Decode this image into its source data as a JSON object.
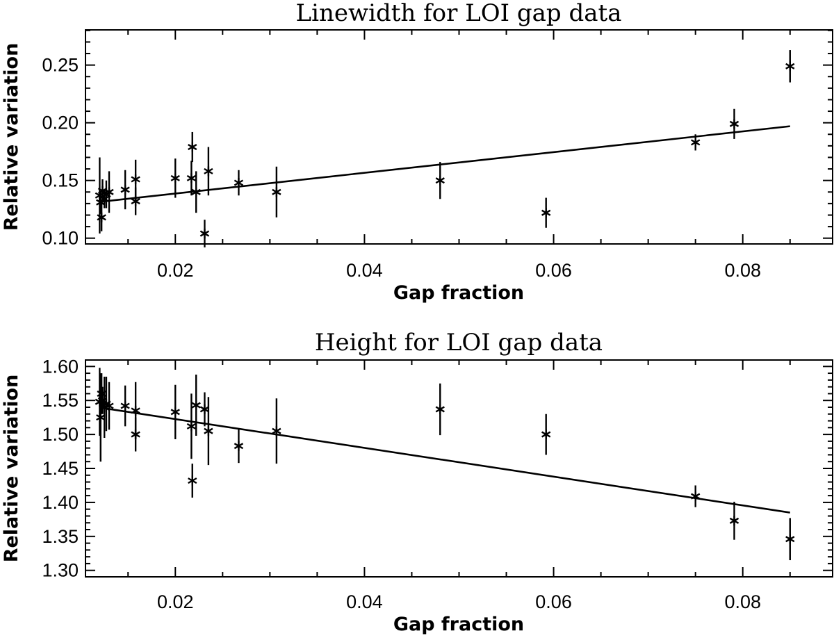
{
  "chart_data": [
    {
      "type": "scatter",
      "title": "Linewidth for LOI gap data",
      "xlabel": "Gap fraction",
      "ylabel": "Relative variation",
      "xlim": [
        0.0105,
        0.0895
      ],
      "ylim": [
        0.095,
        0.2805
      ],
      "xticks": [
        0.02,
        0.04,
        0.06,
        0.08
      ],
      "xtick_labels": [
        "0.02",
        "0.04",
        "0.06",
        "0.08"
      ],
      "yticks": [
        0.1,
        0.15,
        0.2,
        0.25
      ],
      "ytick_labels": [
        "0.10",
        "0.15",
        "0.20",
        "0.25"
      ],
      "points": [
        {
          "x": 0.012,
          "y": 0.137,
          "err": 0.033
        },
        {
          "x": 0.0121,
          "y": 0.131,
          "err": 0.01
        },
        {
          "x": 0.0122,
          "y": 0.118,
          "err": 0.012
        },
        {
          "x": 0.0123,
          "y": 0.141,
          "err": 0.01
        },
        {
          "x": 0.0125,
          "y": 0.134,
          "err": 0.008
        },
        {
          "x": 0.0127,
          "y": 0.138,
          "err": 0.012
        },
        {
          "x": 0.013,
          "y": 0.14,
          "err": 0.018
        },
        {
          "x": 0.0147,
          "y": 0.142,
          "err": 0.017
        },
        {
          "x": 0.0158,
          "y": 0.132,
          "err": 0.012
        },
        {
          "x": 0.0158,
          "y": 0.151,
          "err": 0.017
        },
        {
          "x": 0.02,
          "y": 0.152,
          "err": 0.017
        },
        {
          "x": 0.0217,
          "y": 0.152,
          "err": 0.015
        },
        {
          "x": 0.0218,
          "y": 0.179,
          "err": 0.013
        },
        {
          "x": 0.0222,
          "y": 0.14,
          "err": 0.018
        },
        {
          "x": 0.0231,
          "y": 0.104,
          "err": 0.012
        },
        {
          "x": 0.0235,
          "y": 0.158,
          "err": 0.021
        },
        {
          "x": 0.0267,
          "y": 0.148,
          "err": 0.011
        },
        {
          "x": 0.0307,
          "y": 0.14,
          "err": 0.022
        },
        {
          "x": 0.048,
          "y": 0.15,
          "err": 0.016
        },
        {
          "x": 0.0592,
          "y": 0.122,
          "err": 0.013
        },
        {
          "x": 0.075,
          "y": 0.183,
          "err": 0.007
        },
        {
          "x": 0.0791,
          "y": 0.199,
          "err": 0.013
        },
        {
          "x": 0.085,
          "y": 0.249,
          "err": 0.014
        }
      ],
      "fit_line": {
        "x": [
          0.012,
          0.085
        ],
        "y": [
          0.1315,
          0.197
        ]
      }
    },
    {
      "type": "scatter",
      "title": "Height for LOI gap data",
      "xlabel": "Gap fraction",
      "ylabel": "Relative variation",
      "xlim": [
        0.0105,
        0.0895
      ],
      "ylim": [
        1.2905,
        1.6095
      ],
      "xticks": [
        0.02,
        0.04,
        0.06,
        0.08
      ],
      "xtick_labels": [
        "0.02",
        "0.04",
        "0.06",
        "0.08"
      ],
      "yticks": [
        1.3,
        1.35,
        1.4,
        1.45,
        1.5,
        1.55,
        1.6
      ],
      "ytick_labels": [
        "1.30",
        "1.35",
        "1.40",
        "1.45",
        "1.50",
        "1.55",
        "1.60"
      ],
      "points": [
        {
          "x": 0.012,
          "y": 1.548,
          "err": 0.05
        },
        {
          "x": 0.0121,
          "y": 1.525,
          "err": 0.065
        },
        {
          "x": 0.0122,
          "y": 1.56,
          "err": 0.03
        },
        {
          "x": 0.0123,
          "y": 1.55,
          "err": 0.02
        },
        {
          "x": 0.0125,
          "y": 1.54,
          "err": 0.045
        },
        {
          "x": 0.0127,
          "y": 1.545,
          "err": 0.04
        },
        {
          "x": 0.013,
          "y": 1.542,
          "err": 0.035
        },
        {
          "x": 0.0147,
          "y": 1.542,
          "err": 0.03
        },
        {
          "x": 0.0158,
          "y": 1.535,
          "err": 0.042
        },
        {
          "x": 0.0158,
          "y": 1.5,
          "err": 0.025
        },
        {
          "x": 0.02,
          "y": 1.533,
          "err": 0.04
        },
        {
          "x": 0.0217,
          "y": 1.512,
          "err": 0.048
        },
        {
          "x": 0.0218,
          "y": 1.432,
          "err": 0.025
        },
        {
          "x": 0.0222,
          "y": 1.543,
          "err": 0.045
        },
        {
          "x": 0.0231,
          "y": 1.537,
          "err": 0.025
        },
        {
          "x": 0.0235,
          "y": 1.505,
          "err": 0.05
        },
        {
          "x": 0.0267,
          "y": 1.483,
          "err": 0.025
        },
        {
          "x": 0.0307,
          "y": 1.505,
          "err": 0.048
        },
        {
          "x": 0.048,
          "y": 1.537,
          "err": 0.038
        },
        {
          "x": 0.0592,
          "y": 1.5,
          "err": 0.03
        },
        {
          "x": 0.075,
          "y": 1.409,
          "err": 0.016
        },
        {
          "x": 0.0791,
          "y": 1.373,
          "err": 0.028
        },
        {
          "x": 0.085,
          "y": 1.346,
          "err": 0.031
        }
      ],
      "fit_line": {
        "x": [
          0.012,
          0.085
        ],
        "y": [
          1.5395,
          1.385
        ]
      }
    }
  ]
}
